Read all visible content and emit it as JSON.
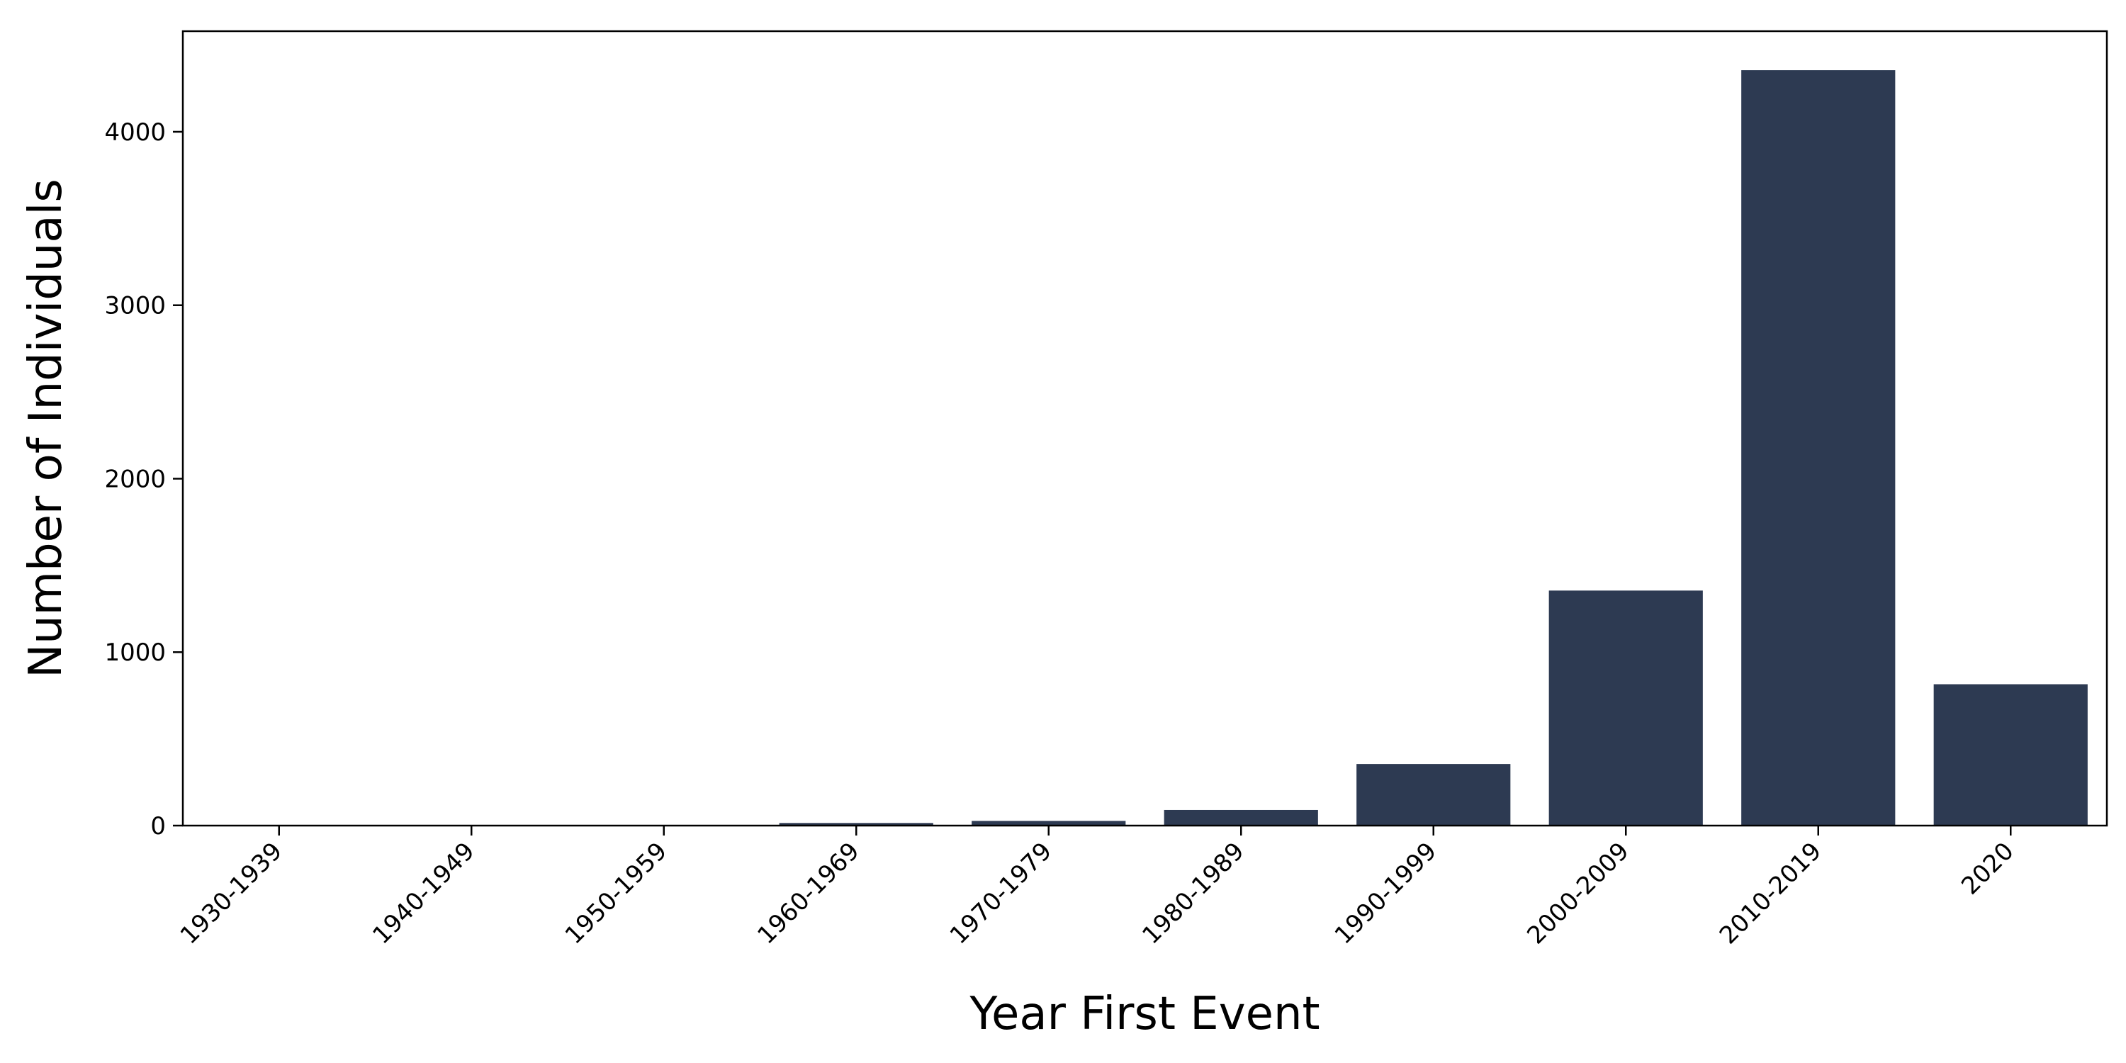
{
  "chart_data": {
    "type": "bar",
    "xlabel": "Year First Event",
    "ylabel": "Number of Individuals",
    "categories": [
      "1930-1939",
      "1940-1949",
      "1950-1959",
      "1960-1969",
      "1970-1979",
      "1980-1989",
      "1990-1999",
      "2000-2009",
      "2010-2019",
      "2020"
    ],
    "values": [
      2,
      2,
      3,
      15,
      27,
      90,
      355,
      1355,
      4355,
      815
    ],
    "ylim": [
      0,
      4580
    ],
    "yticks": [
      0,
      1000,
      2000,
      3000,
      4000
    ],
    "grid": false,
    "bar_color": "#2d3a52"
  }
}
